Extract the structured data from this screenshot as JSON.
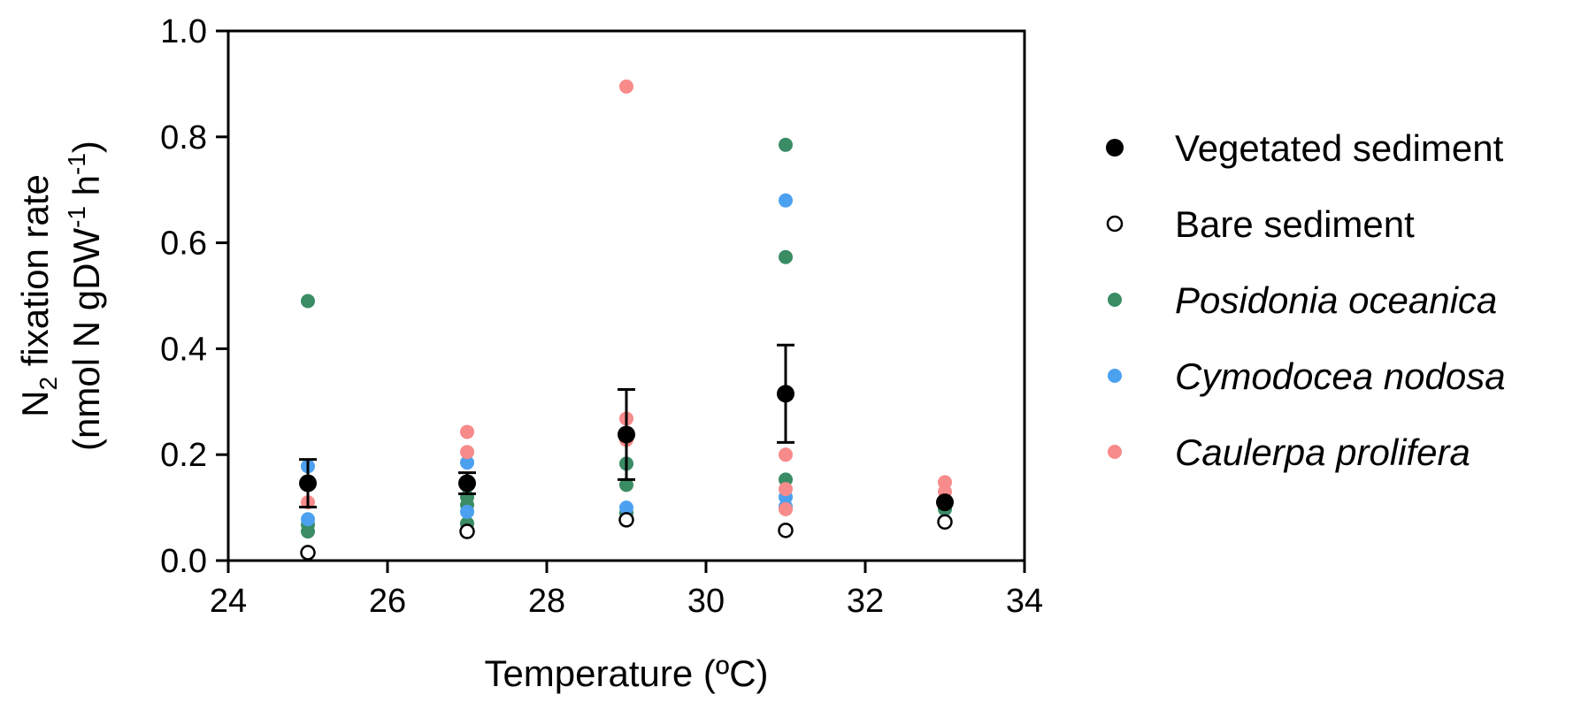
{
  "chart_data": {
    "type": "scatter",
    "xlabel": "Temperature (ºC)",
    "ylabel": {
      "line1": {
        "pre": "N",
        "sub": "2",
        "post": " fixation rate"
      },
      "line2": {
        "pre": "(nmol N gDW",
        "sup1": "-1",
        "mid": " h",
        "sup2": "-1",
        "post": ")"
      }
    },
    "xlim": [
      24,
      34
    ],
    "ylim": [
      0.0,
      1.0
    ],
    "x_ticks": [
      "24",
      "26",
      "28",
      "30",
      "32",
      "34"
    ],
    "y_ticks": [
      "0.0",
      "0.2",
      "0.4",
      "0.6",
      "0.8",
      "1.0"
    ],
    "grid": false,
    "legend_position": "right",
    "series": [
      {
        "name": "Vegetated sediment",
        "style": "filled",
        "color": "#000000",
        "italic": false,
        "points": [
          {
            "x": 25,
            "y": 0.146,
            "err": 0.045
          },
          {
            "x": 27,
            "y": 0.146,
            "err": 0.02
          },
          {
            "x": 29,
            "y": 0.238,
            "err": 0.085
          },
          {
            "x": 31,
            "y": 0.315,
            "err": 0.092
          },
          {
            "x": 33,
            "y": 0.11,
            "err": 0.0
          }
        ]
      },
      {
        "name": "Bare sediment",
        "style": "open",
        "color": "#000000",
        "italic": false,
        "points": [
          {
            "x": 25,
            "y": 0.015
          },
          {
            "x": 27,
            "y": 0.055
          },
          {
            "x": 29,
            "y": 0.077
          },
          {
            "x": 31,
            "y": 0.057
          },
          {
            "x": 33,
            "y": 0.073
          }
        ]
      },
      {
        "name": "Posidonia oceanica",
        "style": "small",
        "color": "#3a8c64",
        "italic": true,
        "points": [
          {
            "x": 25,
            "y": 0.49
          },
          {
            "x": 25,
            "y": 0.068
          },
          {
            "x": 25,
            "y": 0.055
          },
          {
            "x": 27,
            "y": 0.12
          },
          {
            "x": 27,
            "y": 0.105
          },
          {
            "x": 27,
            "y": 0.07
          },
          {
            "x": 29,
            "y": 0.183
          },
          {
            "x": 29,
            "y": 0.143
          },
          {
            "x": 29,
            "y": 0.09
          },
          {
            "x": 31,
            "y": 0.785
          },
          {
            "x": 31,
            "y": 0.573
          },
          {
            "x": 31,
            "y": 0.153
          },
          {
            "x": 33,
            "y": 0.097
          }
        ]
      },
      {
        "name": "Cymodocea nodosa",
        "style": "small",
        "color": "#4ba0f0",
        "italic": true,
        "points": [
          {
            "x": 25,
            "y": 0.178
          },
          {
            "x": 25,
            "y": 0.078
          },
          {
            "x": 27,
            "y": 0.185
          },
          {
            "x": 27,
            "y": 0.092
          },
          {
            "x": 29,
            "y": 0.1
          },
          {
            "x": 31,
            "y": 0.68
          },
          {
            "x": 31,
            "y": 0.12
          },
          {
            "x": 31,
            "y": 0.102
          },
          {
            "x": 33,
            "y": 0.075
          }
        ]
      },
      {
        "name": "Caulerpa prolifera",
        "style": "small",
        "color": "#f78a8a",
        "italic": true,
        "points": [
          {
            "x": 25,
            "y": 0.11
          },
          {
            "x": 27,
            "y": 0.243
          },
          {
            "x": 27,
            "y": 0.205
          },
          {
            "x": 29,
            "y": 0.895
          },
          {
            "x": 29,
            "y": 0.268
          },
          {
            "x": 29,
            "y": 0.228
          },
          {
            "x": 31,
            "y": 0.2
          },
          {
            "x": 31,
            "y": 0.135
          },
          {
            "x": 31,
            "y": 0.097
          },
          {
            "x": 33,
            "y": 0.148
          },
          {
            "x": 33,
            "y": 0.13
          }
        ]
      }
    ]
  }
}
